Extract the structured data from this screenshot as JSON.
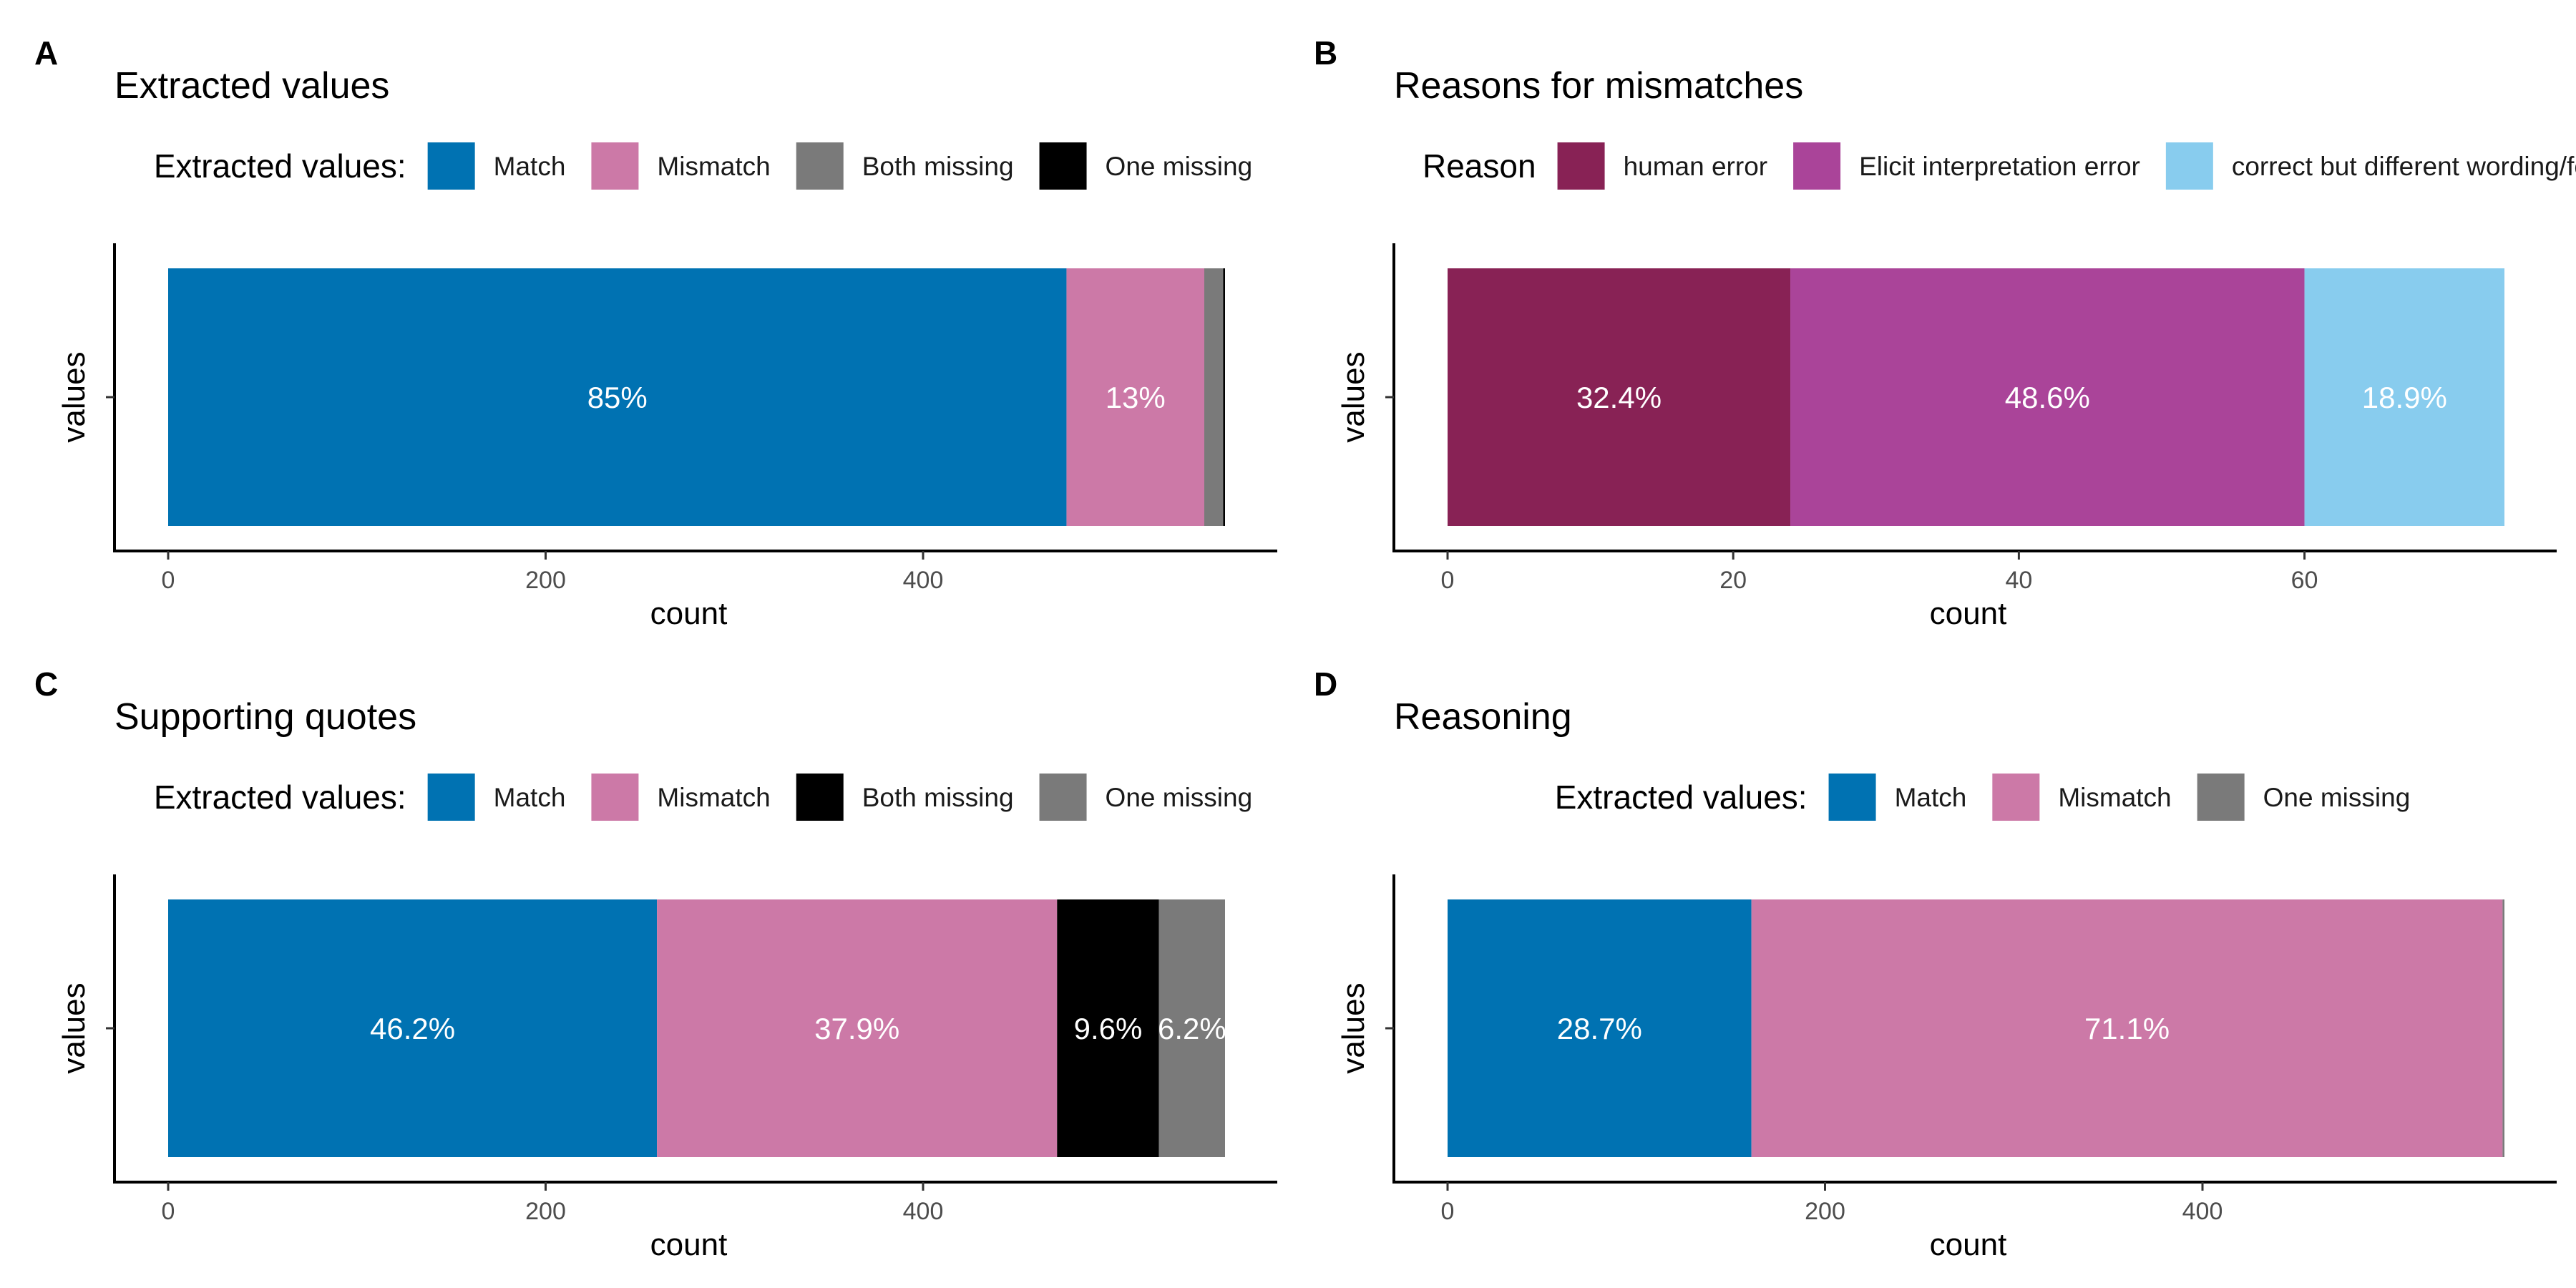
{
  "chart_data": [
    {
      "type": "bar",
      "orientation": "horizontal",
      "stacked": true,
      "panel": "A",
      "title": "Extracted values",
      "legend_title": "Extracted values:",
      "legend_position": "top",
      "xlabel": "count",
      "ylabel": "values",
      "xlim": [
        0,
        560
      ],
      "x_ticks": [
        0,
        200,
        400
      ],
      "grid": false,
      "segments": [
        {
          "name": "Match",
          "value": 476,
          "label": "85%",
          "color": "#0072B2"
        },
        {
          "name": "Mismatch",
          "value": 73,
          "label": "13%",
          "color": "#CC79A7"
        },
        {
          "name": "Both missing",
          "value": 10,
          "label": "",
          "color": "#7A7A7A"
        },
        {
          "name": "One missing",
          "value": 1,
          "label": "",
          "color": "#000000"
        }
      ]
    },
    {
      "type": "bar",
      "orientation": "horizontal",
      "stacked": true,
      "panel": "B",
      "title": "Reasons for mismatches",
      "legend_title": "Reason",
      "legend_position": "top",
      "xlabel": "count",
      "ylabel": "values",
      "xlim": [
        0,
        74
      ],
      "x_ticks": [
        0,
        20,
        40,
        60
      ],
      "grid": false,
      "segments": [
        {
          "name": "human error",
          "value": 24,
          "label": "32.4%",
          "color": "#882255"
        },
        {
          "name": "Elicit interpretation error",
          "value": 36,
          "label": "48.6%",
          "color": "#AA4499"
        },
        {
          "name": "correct but different wording/format",
          "value": 14,
          "label": "18.9%",
          "color": "#88CCEE"
        }
      ]
    },
    {
      "type": "bar",
      "orientation": "horizontal",
      "stacked": true,
      "panel": "C",
      "title": "Supporting quotes",
      "legend_title": "Extracted values:",
      "legend_position": "top",
      "xlabel": "count",
      "ylabel": "values",
      "xlim": [
        0,
        560
      ],
      "x_ticks": [
        0,
        200,
        400
      ],
      "grid": false,
      "segments": [
        {
          "name": "Match",
          "value": 259,
          "label": "46.2%",
          "color": "#0072B2"
        },
        {
          "name": "Mismatch",
          "value": 212,
          "label": "37.9%",
          "color": "#CC79A7"
        },
        {
          "name": "Both missing",
          "value": 54,
          "label": "9.6%",
          "color": "#000000"
        },
        {
          "name": "One missing",
          "value": 35,
          "label": "6.2%",
          "color": "#7A7A7A"
        }
      ]
    },
    {
      "type": "bar",
      "orientation": "horizontal",
      "stacked": true,
      "panel": "D",
      "title": "Reasoning",
      "legend_title": "Extracted values:",
      "legend_position": "top",
      "xlabel": "count",
      "ylabel": "values",
      "xlim": [
        0,
        560
      ],
      "x_ticks": [
        0,
        200,
        400
      ],
      "grid": false,
      "segments": [
        {
          "name": "Match",
          "value": 161,
          "label": "28.7%",
          "color": "#0072B2"
        },
        {
          "name": "Mismatch",
          "value": 398,
          "label": "71.1%",
          "color": "#CC79A7"
        },
        {
          "name": "One missing",
          "value": 1,
          "label": "",
          "color": "#7A7A7A"
        }
      ]
    }
  ]
}
